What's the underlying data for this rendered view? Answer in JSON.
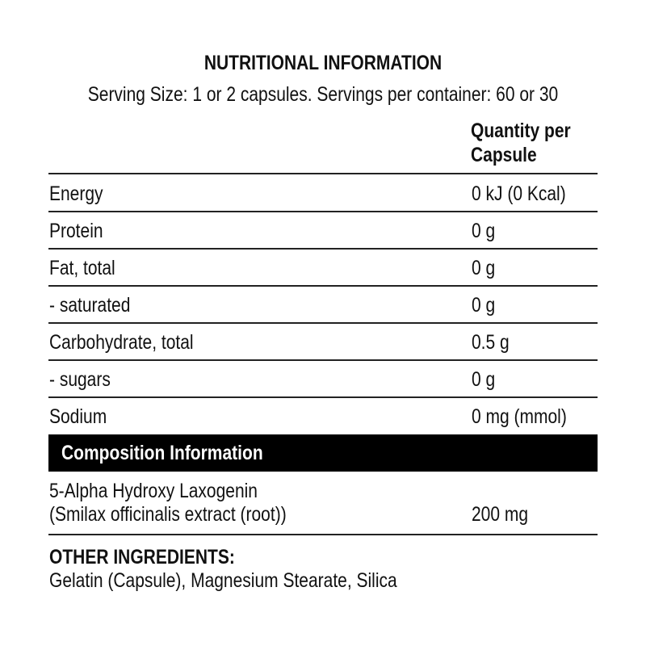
{
  "title": "NUTRITIONAL INFORMATION",
  "serving": "Serving Size: 1 or 2 capsules. Servings per container: 60 or 30",
  "column_header": [
    "Quantity per",
    "Capsule"
  ],
  "rows": [
    {
      "label": "Energy",
      "value": "0 kJ (0 Kcal)"
    },
    {
      "label": "Protein",
      "value": "0 g"
    },
    {
      "label": "Fat, total",
      "value": "0 g"
    },
    {
      "label": "- saturated",
      "value": "0 g"
    },
    {
      "label": "Carbohydrate, total",
      "value": "0.5 g"
    },
    {
      "label": "- sugars",
      "value": "0 g"
    },
    {
      "label": "Sodium",
      "value": "0 mg (mmol)"
    }
  ],
  "composition": {
    "heading": "Composition Information",
    "ingredient": [
      "5-Alpha Hydroxy Laxogenin",
      "(Smilax officinalis extract (root))"
    ],
    "value": "200 mg"
  },
  "other": {
    "heading": "OTHER INGREDIENTS:",
    "text": "Gelatin (Capsule), Magnesium Stearate, Silica"
  }
}
